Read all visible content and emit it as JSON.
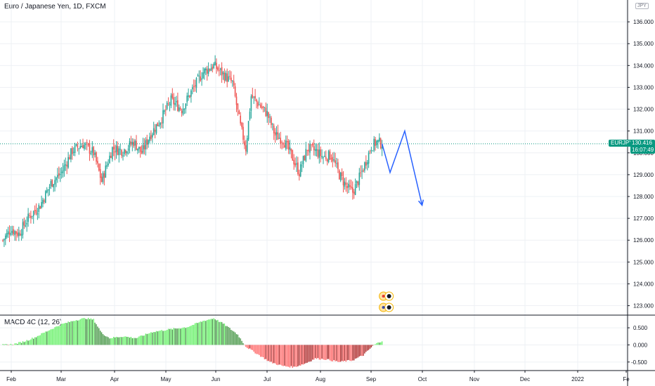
{
  "header": {
    "title": "Euro / Japanese Yen, 1D, FXCM",
    "currency_label": "JPY"
  },
  "macd_panel": {
    "label": "MACD 4C (12, 26)"
  },
  "price_tag": {
    "symbol": "EURJPY",
    "price": "130.416",
    "countdown": "16:07:49"
  },
  "colors": {
    "up_candle": "#26a69a",
    "down_candle": "#ef5350",
    "macd_bright_green": "#69f06a",
    "macd_dark_green": "#4c9a4c",
    "macd_bright_red": "#ff6a6a",
    "macd_dark_red": "#b03030",
    "projection": "#2962ff",
    "price_line": "#089981"
  },
  "chart_data": [
    {
      "type": "candlestick",
      "title": "Euro / Japanese Yen, 1D, FXCM",
      "x_ticks": [
        "Feb",
        "Mar",
        "Apr",
        "May",
        "Jun",
        "Jul",
        "Aug",
        "Sep",
        "Oct",
        "Nov",
        "Dec",
        "2022",
        "Fe"
      ],
      "y_ticks": [
        "123.000",
        "124.000",
        "125.000",
        "126.000",
        "127.000",
        "128.000",
        "129.000",
        "130.000",
        "131.000",
        "132.000",
        "133.000",
        "134.000",
        "135.000",
        "136.000"
      ],
      "ylim": [
        122.6,
        137.0
      ],
      "current_price": 130.416,
      "close_path": [
        [
          0,
          126.0
        ],
        [
          6,
          126.5
        ],
        [
          12,
          126.3
        ],
        [
          20,
          127.1
        ],
        [
          28,
          127.6
        ],
        [
          36,
          128.6
        ],
        [
          44,
          129.1
        ],
        [
          52,
          130.1
        ],
        [
          60,
          130.4
        ],
        [
          68,
          130.0
        ],
        [
          74,
          128.7
        ],
        [
          82,
          130.2
        ],
        [
          90,
          130.1
        ],
        [
          98,
          130.5
        ],
        [
          104,
          130.0
        ],
        [
          110,
          130.8
        ],
        [
          118,
          131.5
        ],
        [
          126,
          132.4
        ],
        [
          134,
          132.0
        ],
        [
          142,
          132.9
        ],
        [
          150,
          133.7
        ],
        [
          158,
          134.0
        ],
        [
          165,
          133.6
        ],
        [
          172,
          133.2
        ],
        [
          178,
          131.2
        ],
        [
          182,
          130.2
        ],
        [
          186,
          132.6
        ],
        [
          192,
          132.2
        ],
        [
          198,
          131.8
        ],
        [
          204,
          130.8
        ],
        [
          210,
          130.6
        ],
        [
          216,
          129.9
        ],
        [
          222,
          129.1
        ],
        [
          228,
          130.2
        ],
        [
          234,
          130.1
        ],
        [
          240,
          129.8
        ],
        [
          246,
          129.9
        ],
        [
          252,
          129.0
        ],
        [
          258,
          128.4
        ],
        [
          262,
          128.2
        ],
        [
          266,
          128.7
        ],
        [
          270,
          129.3
        ],
        [
          276,
          130.3
        ],
        [
          280,
          130.5
        ],
        [
          284,
          130.42
        ]
      ],
      "projection": [
        [
          284,
          130.42
        ],
        [
          290,
          129.1
        ],
        [
          301,
          131.0
        ],
        [
          314,
          127.6
        ]
      ]
    },
    {
      "type": "bar",
      "title": "MACD 4C (12, 26)",
      "y_ticks": [
        "0.500",
        "0.000",
        "-0.500"
      ],
      "ylim": [
        -0.75,
        0.85
      ],
      "histogram_path": [
        [
          0,
          0.0
        ],
        [
          8,
          0.02
        ],
        [
          16,
          0.1
        ],
        [
          24,
          0.22
        ],
        [
          34,
          0.42
        ],
        [
          44,
          0.6
        ],
        [
          54,
          0.72
        ],
        [
          62,
          0.78
        ],
        [
          68,
          0.74
        ],
        [
          74,
          0.35
        ],
        [
          80,
          0.2
        ],
        [
          90,
          0.25
        ],
        [
          100,
          0.2
        ],
        [
          112,
          0.38
        ],
        [
          124,
          0.45
        ],
        [
          138,
          0.52
        ],
        [
          150,
          0.7
        ],
        [
          158,
          0.78
        ],
        [
          166,
          0.6
        ],
        [
          176,
          0.3
        ],
        [
          182,
          -0.05
        ],
        [
          190,
          -0.25
        ],
        [
          200,
          -0.5
        ],
        [
          210,
          -0.62
        ],
        [
          218,
          -0.65
        ],
        [
          226,
          -0.55
        ],
        [
          234,
          -0.4
        ],
        [
          242,
          -0.42
        ],
        [
          252,
          -0.5
        ],
        [
          262,
          -0.45
        ],
        [
          270,
          -0.3
        ],
        [
          278,
          0.0
        ],
        [
          284,
          0.12
        ]
      ]
    }
  ]
}
